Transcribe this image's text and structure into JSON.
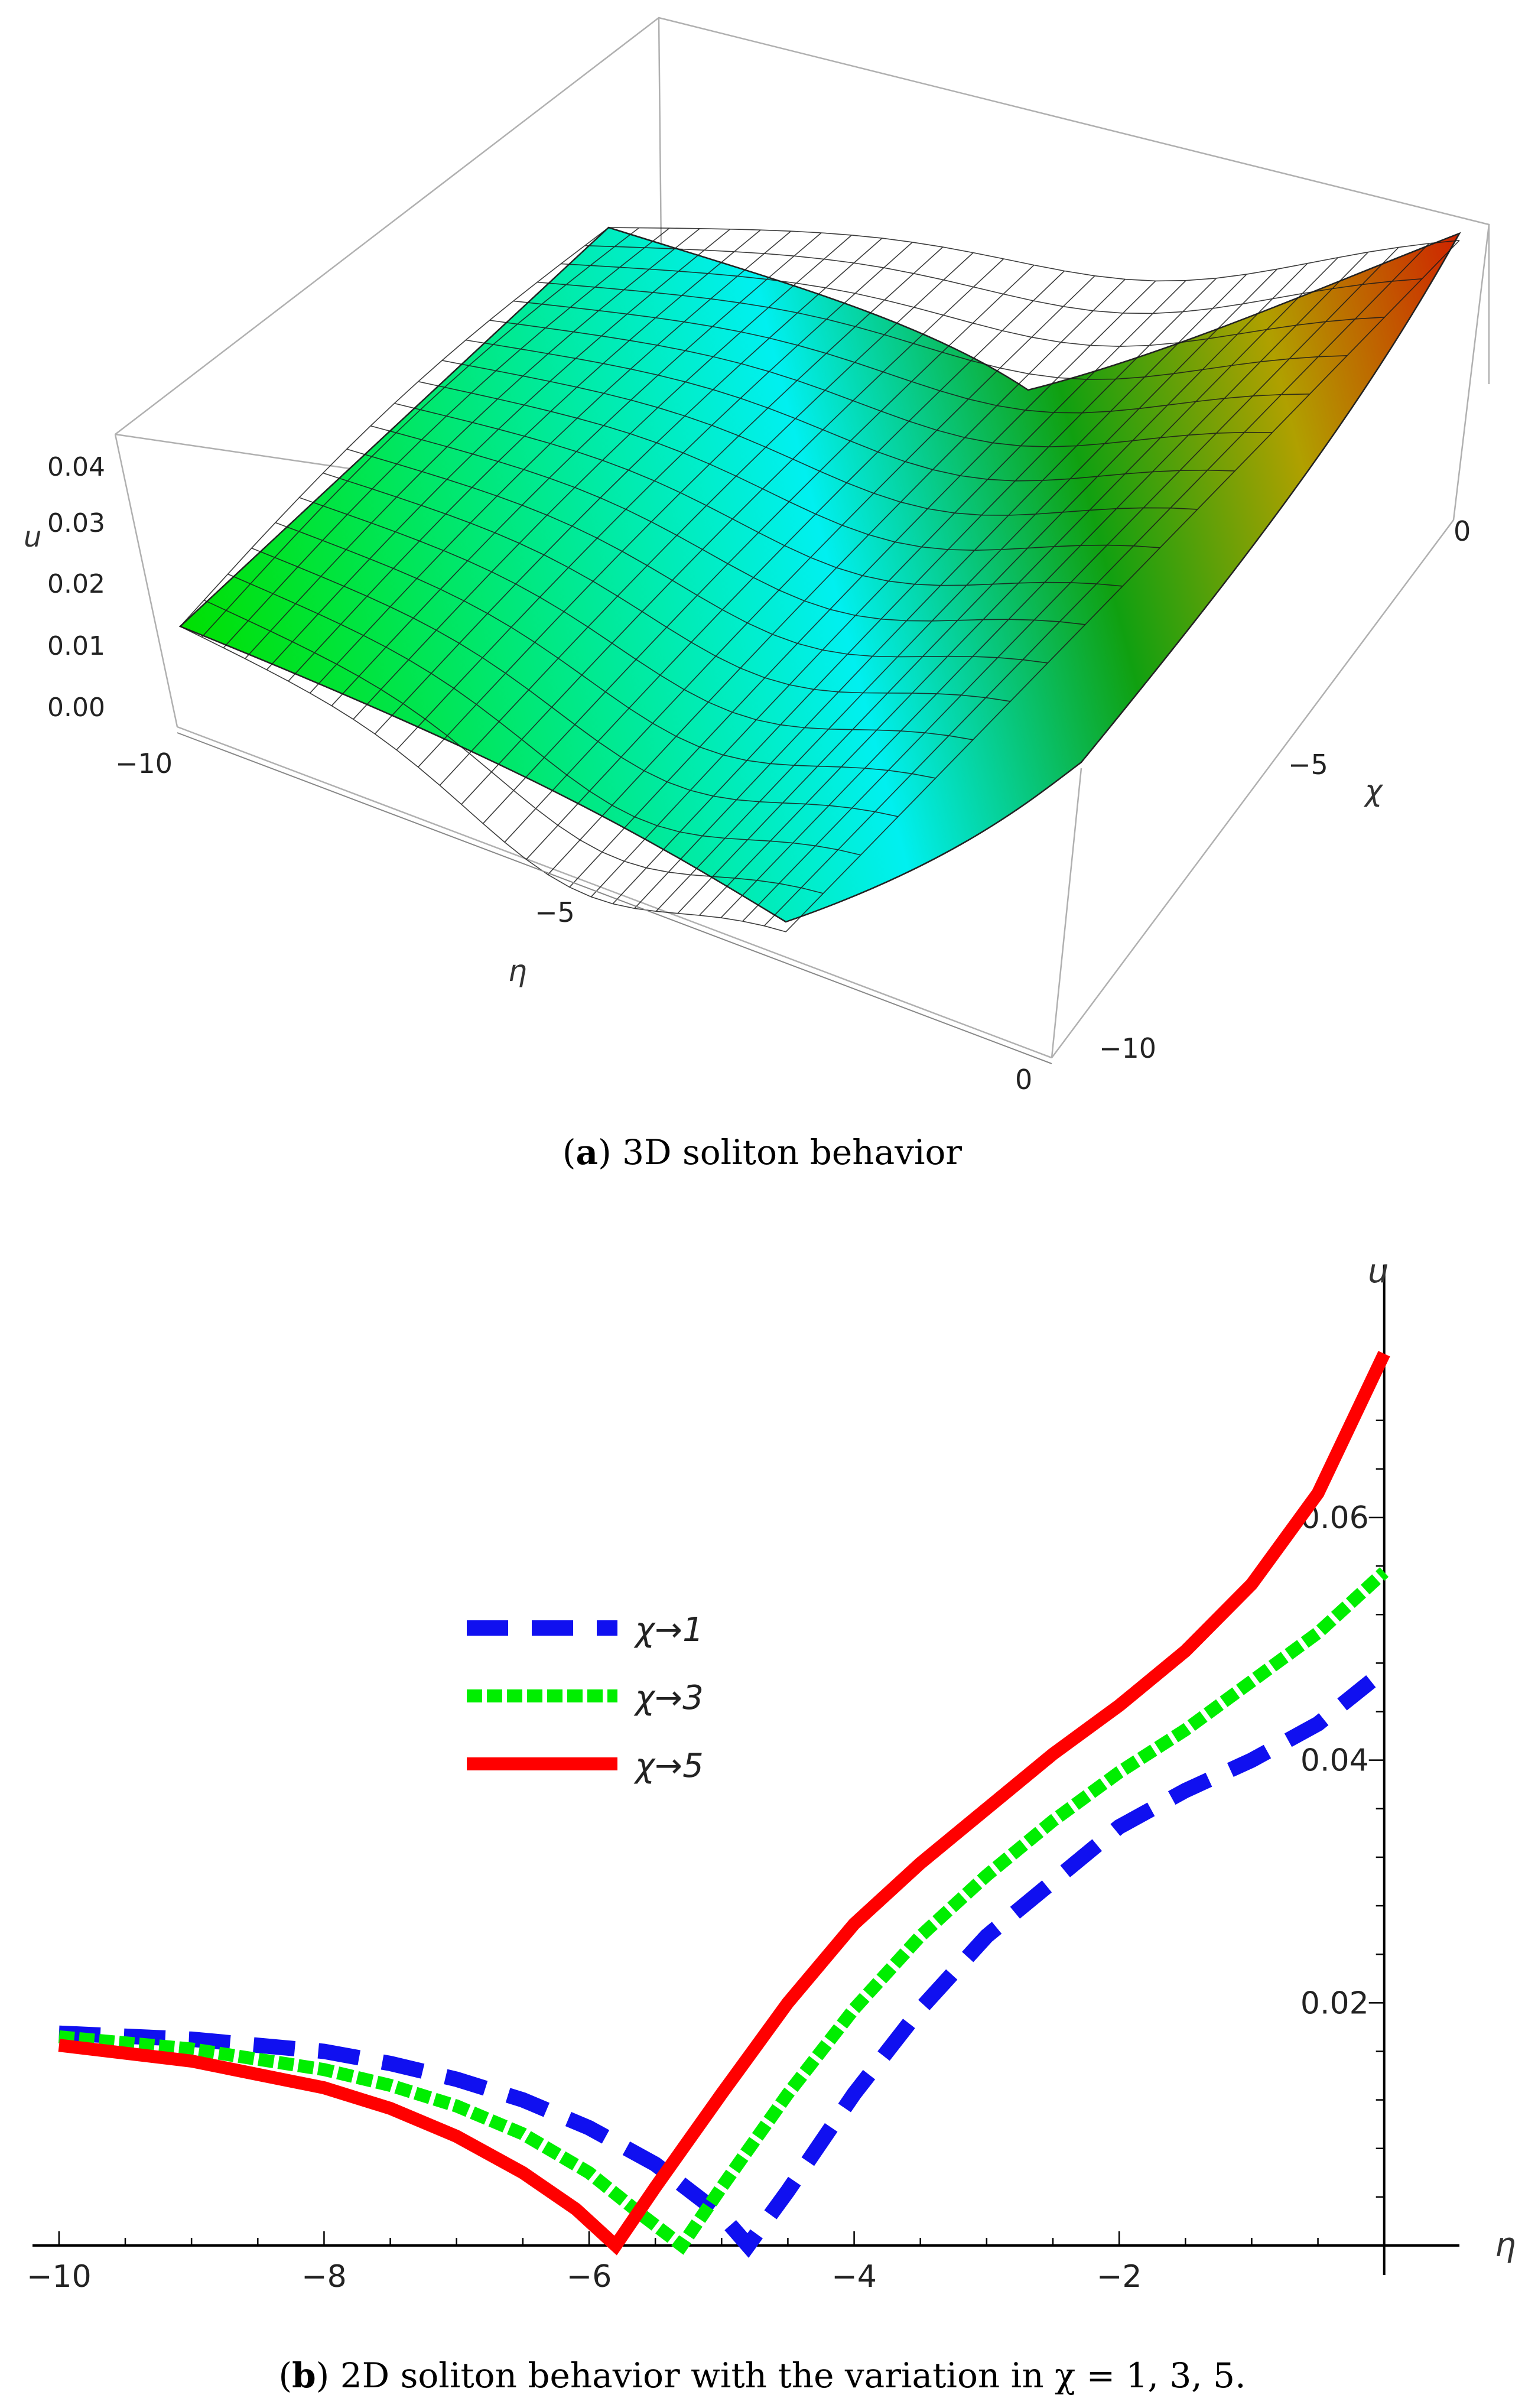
{
  "figure": {
    "caption_a": {
      "letter": "a",
      "text": " 3D soliton behavior"
    },
    "caption_b": {
      "letter": "b",
      "text": " 2D soliton behavior with the variation in χ = 1, 3, 5."
    }
  },
  "chart_data": [
    {
      "type": "surface3d",
      "axes": {
        "x": {
          "label": "η",
          "ticks": [
            "−10",
            "−5",
            "0"
          ],
          "range": [
            -10,
            0
          ]
        },
        "y": {
          "label": "χ",
          "ticks": [
            "−10",
            "−5",
            "0"
          ],
          "range": [
            -10,
            0
          ]
        },
        "z": {
          "label": "u",
          "ticks": [
            "0.00",
            "0.01",
            "0.02",
            "0.03",
            "0.04"
          ],
          "range": [
            0,
            0.04
          ]
        }
      },
      "colormap": [
        "#00e000",
        "#00f0f0",
        "#10a010",
        "#b0a000",
        "#d02000"
      ],
      "xlabel": "η",
      "ylabel": "χ",
      "zlabel": "u"
    },
    {
      "type": "line",
      "xlabel": "η",
      "ylabel": "u",
      "xlim": [
        -10.2,
        0.3
      ],
      "ylim": [
        0,
        0.075
      ],
      "x_ticks": [
        -10,
        -8,
        -6,
        -4,
        -2
      ],
      "x_tick_labels": [
        "−10",
        "−8",
        "−6",
        "−4",
        "−2"
      ],
      "y_ticks": [
        0.02,
        0.04,
        0.06
      ],
      "y_tick_labels": [
        "0.02",
        "0.04",
        "0.06"
      ],
      "legend_position": "left-middle",
      "series": [
        {
          "name": "χ→1",
          "color": "#1010f0",
          "style": "dashed",
          "x": [
            -10,
            -9,
            -8,
            -7.5,
            -7,
            -6.5,
            -6,
            -5.5,
            -5,
            -4.8,
            -4.5,
            -4,
            -3.5,
            -3,
            -2.5,
            -2,
            -1.5,
            -1,
            -0.5,
            -0.1
          ],
          "y": [
            0.0175,
            0.017,
            0.016,
            0.015,
            0.0137,
            0.012,
            0.0097,
            0.0067,
            0.0025,
            0.0,
            0.0045,
            0.0125,
            0.0195,
            0.0255,
            0.03,
            0.0345,
            0.0375,
            0.04,
            0.043,
            0.0465
          ]
        },
        {
          "name": "χ→3",
          "color": "#00ee00",
          "style": "dashed",
          "x": [
            -10,
            -9,
            -8,
            -7.5,
            -7,
            -6.5,
            -6,
            -5.6,
            -5.3,
            -5,
            -4.5,
            -4,
            -3.5,
            -3,
            -2.5,
            -2,
            -1.5,
            -1,
            -0.5,
            0
          ],
          "y": [
            0.0172,
            0.0162,
            0.0145,
            0.0132,
            0.0115,
            0.0092,
            0.006,
            0.0025,
            0.0,
            0.0048,
            0.0125,
            0.0195,
            0.0255,
            0.0305,
            0.035,
            0.039,
            0.0425,
            0.0465,
            0.0505,
            0.0555
          ]
        },
        {
          "name": "χ→5",
          "color": "#ff0000",
          "style": "solid",
          "x": [
            -10,
            -9,
            -8,
            -7.5,
            -7,
            -6.5,
            -6.1,
            -5.8,
            -5.5,
            -5,
            -4.5,
            -4,
            -3.5,
            -3,
            -2.5,
            -2,
            -1.5,
            -1,
            -0.5,
            0
          ],
          "y": [
            0.0165,
            0.0152,
            0.013,
            0.0113,
            0.009,
            0.006,
            0.003,
            0.0,
            0.0048,
            0.0125,
            0.02,
            0.0265,
            0.0315,
            0.036,
            0.0405,
            0.0445,
            0.049,
            0.0545,
            0.062,
            0.0735
          ]
        }
      ]
    }
  ]
}
